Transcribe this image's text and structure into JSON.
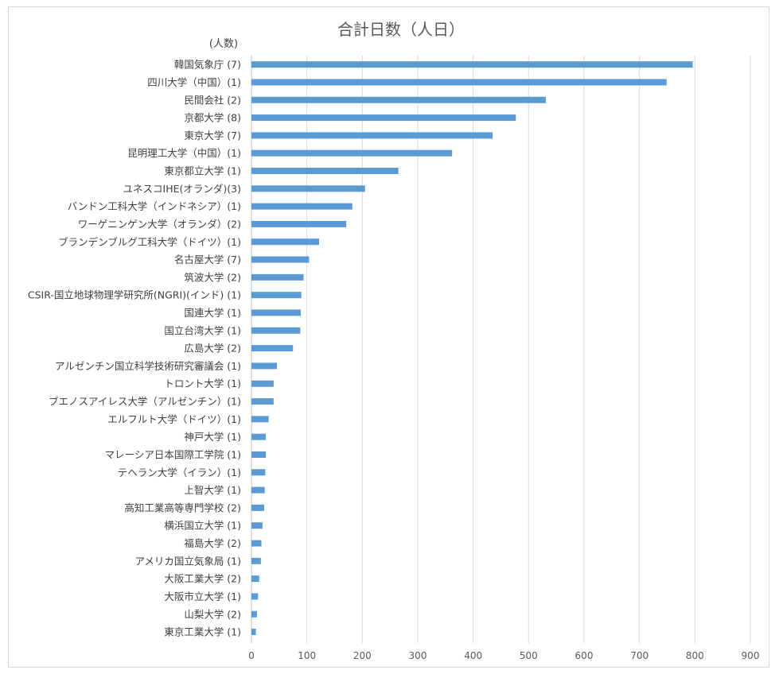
{
  "chart_data": {
    "type": "bar",
    "orientation": "horizontal",
    "title": "合計日数（人日）",
    "unit_label": "(人数)",
    "xlim": [
      0,
      900
    ],
    "xticks": [
      0,
      100,
      200,
      300,
      400,
      500,
      600,
      700,
      800,
      900
    ],
    "grid": true,
    "bar_color": "#5b9bd5",
    "categories": [
      "韓国気象庁 (7)",
      "四川大学（中国）(1)",
      "民間会社 (2)",
      "京都大学 (8)",
      "東京大学 (7)",
      "昆明理工大学（中国）(1)",
      "東京都立大学 (1)",
      "ユネスコIHE(オランダ)(3)",
      "バンドン工科大学（インドネシア）(1)",
      "ワーゲニンゲン大学（オランダ）(2)",
      "ブランデンブルグ工科大学（ドイツ）(1)",
      "名古屋大学 (7)",
      "筑波大学 (2)",
      "CSIR-国立地球物理学研究所(NGRI)(インド) (1)",
      "国連大学 (1)",
      "国立台湾大学 (1)",
      "広島大学 (2)",
      "アルゼンチン国立科学技術研究審議会 (1)",
      "トロント大学 (1)",
      "ブエノスアイレス大学（アルゼンチン）(1)",
      "エルフルト大学（ドイツ）(1)",
      "神戸大学 (1)",
      "マレーシア日本国際工学院 (1)",
      "テヘラン大学（イラン）(1)",
      "上智大学 (1)",
      "高知工業高等専門学校 (2)",
      "横浜国立大学 (1)",
      "福島大学 (2)",
      "アメリカ国立気象局 (1)",
      "大阪工業大学 (2)",
      "大阪市立大学 (1)",
      "山梨大学 (2)",
      "東京工業大学 (1)"
    ],
    "values": [
      796,
      749,
      531,
      477,
      435,
      362,
      265,
      205,
      182,
      171,
      122,
      104,
      94,
      90,
      89,
      88,
      75,
      46,
      40,
      40,
      31,
      26,
      26,
      25,
      24,
      23,
      20,
      18,
      17,
      14,
      12,
      10,
      8
    ]
  }
}
